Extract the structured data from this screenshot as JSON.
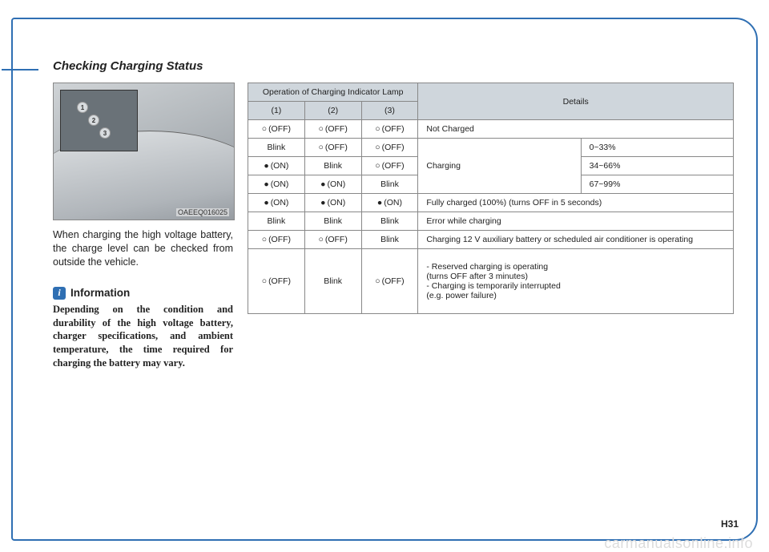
{
  "title": "Checking Charging Status",
  "figure_code": "OAEEQ016025",
  "body_paragraph": "When charging the high voltage battery, the charge level can be checked from outside the vehicle.",
  "info_label": "Information",
  "info_paragraph": "Depending on the condition and durability of the high voltage battery, charger specifications, and ambient temperature, the time required for charging the battery may vary.",
  "table": {
    "header_group": "Operation of Charging Indicator Lamp",
    "header_details": "Details",
    "cols": [
      "(1)",
      "(2)",
      "(3)"
    ],
    "rows": [
      {
        "c": [
          "off:(OFF)",
          "off:(OFF)",
          "off:(OFF)"
        ],
        "d": "Not Charged"
      },
      {
        "c": [
          "txt:Blink",
          "off:(OFF)",
          "off:(OFF)"
        ],
        "d_group": "Charging",
        "d2": "0~33%"
      },
      {
        "c": [
          "on:(ON)",
          "txt:Blink",
          "off:(OFF)"
        ],
        "d2": "34~66%"
      },
      {
        "c": [
          "on:(ON)",
          "on:(ON)",
          "txt:Blink"
        ],
        "d2": "67~99%"
      },
      {
        "c": [
          "on:(ON)",
          "on:(ON)",
          "on:(ON)"
        ],
        "d": "Fully charged (100%) (turns OFF in 5 seconds)"
      },
      {
        "c": [
          "txt:Blink",
          "txt:Blink",
          "txt:Blink"
        ],
        "d": "Error while charging"
      },
      {
        "c": [
          "off:(OFF)",
          "off:(OFF)",
          "txt:Blink"
        ],
        "d": "Charging 12 V auxiliary battery or scheduled air conditioner is operating"
      },
      {
        "c": [
          "off:(OFF)",
          "txt:Blink",
          "off:(OFF)"
        ],
        "d": "- Reserved charging is operating\n  (turns OFF after 3 minutes)\n- Charging is temporarily interrupted\n  (e.g. power failure)",
        "tall": true
      }
    ]
  },
  "page_num": "H31",
  "watermark": "carmanualsonline.info"
}
